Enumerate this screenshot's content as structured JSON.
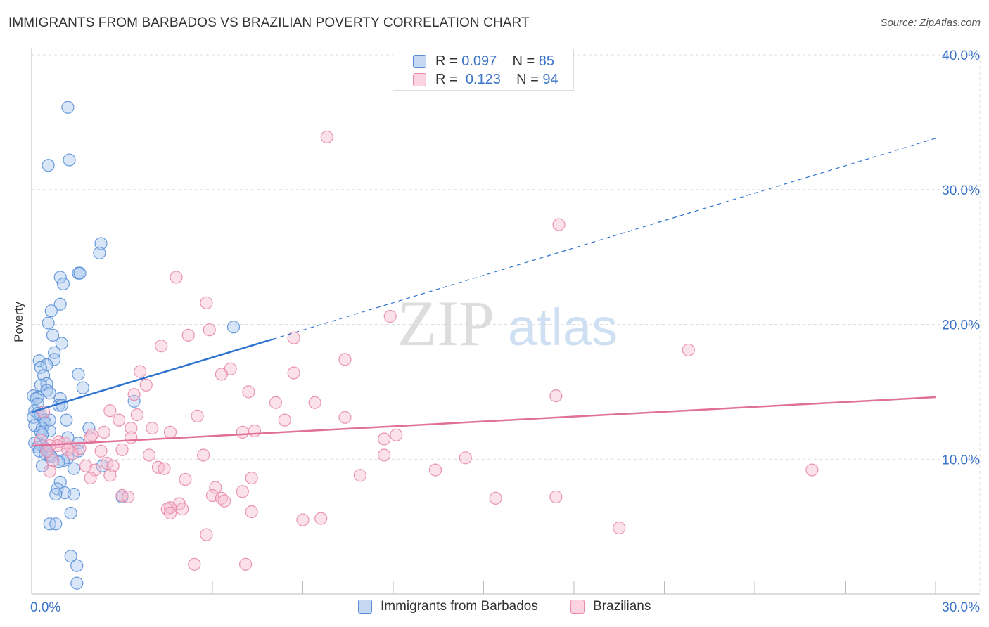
{
  "title": "IMMIGRANTS FROM BARBADOS VS BRAZILIAN POVERTY CORRELATION CHART",
  "source": "Source: ZipAtlas.com",
  "watermark": {
    "zip": "ZIP",
    "atlas": "atlas"
  },
  "colors": {
    "blue_fill": "#a9c7ee",
    "blue_stroke": "#5a8fd8",
    "blue_line": "#2f73d0",
    "pink_fill": "#f7bcd0",
    "pink_stroke": "#e88aaa",
    "pink_line": "#e07099",
    "axis_label": "#3a73c8"
  },
  "legend_top": [
    {
      "r_label": "R =",
      "r_value": "0.097",
      "n_label": "N =",
      "n_value": "85",
      "series": "blue"
    },
    {
      "r_label": "R =",
      "r_value": "0.123",
      "n_label": "N =",
      "n_value": "94",
      "series": "pink"
    }
  ],
  "legend_bottom": [
    {
      "label": "Immigrants from Barbados",
      "series": "blue"
    },
    {
      "label": "Brazilians",
      "series": "pink"
    }
  ],
  "chart_data": {
    "type": "scatter",
    "title": "IMMIGRANTS FROM BARBADOS VS BRAZILIAN POVERTY CORRELATION CHART",
    "xlabel": "",
    "ylabel": "Poverty",
    "xlim": [
      0,
      30
    ],
    "ylim": [
      0,
      40
    ],
    "x_ticks": [
      {
        "value": 0,
        "label": "0.0%"
      },
      {
        "value": 30,
        "label": "30.0%"
      }
    ],
    "y_ticks": [
      {
        "value": 10,
        "label": "10.0%"
      },
      {
        "value": 20,
        "label": "20.0%"
      },
      {
        "value": 30,
        "label": "30.0%"
      },
      {
        "value": 40,
        "label": "40.0%"
      }
    ],
    "grid": true,
    "series": [
      {
        "name": "Immigrants from Barbados",
        "color": "blue",
        "r": 0.097,
        "n": 85,
        "trend": {
          "x0": 0,
          "y0": 13.5,
          "x1": 8,
          "y1": 18.9,
          "dashed_to_x": 30,
          "dashed_to_y": 33.8
        },
        "points": [
          [
            1.2,
            36.1
          ],
          [
            1.25,
            32.2
          ],
          [
            0.55,
            31.8
          ],
          [
            2.3,
            26.0
          ],
          [
            2.25,
            25.3
          ],
          [
            1.55,
            23.8
          ],
          [
            1.6,
            23.8
          ],
          [
            0.95,
            23.5
          ],
          [
            1.05,
            23.0
          ],
          [
            0.95,
            21.5
          ],
          [
            0.65,
            21.0
          ],
          [
            0.55,
            20.1
          ],
          [
            6.7,
            19.8
          ],
          [
            0.7,
            19.2
          ],
          [
            1.0,
            18.6
          ],
          [
            0.75,
            17.9
          ],
          [
            0.75,
            17.4
          ],
          [
            0.25,
            17.3
          ],
          [
            0.5,
            17.0
          ],
          [
            0.3,
            16.8
          ],
          [
            1.55,
            16.3
          ],
          [
            0.4,
            16.2
          ],
          [
            0.5,
            15.6
          ],
          [
            0.3,
            15.5
          ],
          [
            1.7,
            15.3
          ],
          [
            0.5,
            15.1
          ],
          [
            0.6,
            14.9
          ],
          [
            0.05,
            14.7
          ],
          [
            0.2,
            14.6
          ],
          [
            0.15,
            14.5
          ],
          [
            0.95,
            14.5
          ],
          [
            3.4,
            14.3
          ],
          [
            0.2,
            14.1
          ],
          [
            0.9,
            14.0
          ],
          [
            1.0,
            14.0
          ],
          [
            0.1,
            13.6
          ],
          [
            0.2,
            13.4
          ],
          [
            0.3,
            13.3
          ],
          [
            0.05,
            13.1
          ],
          [
            0.4,
            12.9
          ],
          [
            0.6,
            12.9
          ],
          [
            1.15,
            12.9
          ],
          [
            0.45,
            12.7
          ],
          [
            0.1,
            12.5
          ],
          [
            0.35,
            12.3
          ],
          [
            1.9,
            12.3
          ],
          [
            0.6,
            12.1
          ],
          [
            0.3,
            12.0
          ],
          [
            0.35,
            11.8
          ],
          [
            1.2,
            11.6
          ],
          [
            0.1,
            11.2
          ],
          [
            1.55,
            11.2
          ],
          [
            0.35,
            11.0
          ],
          [
            0.2,
            10.9
          ],
          [
            0.45,
            10.8
          ],
          [
            0.5,
            10.7
          ],
          [
            1.55,
            10.6
          ],
          [
            0.25,
            10.6
          ],
          [
            0.55,
            10.5
          ],
          [
            0.45,
            10.4
          ],
          [
            0.6,
            10.3
          ],
          [
            0.65,
            10.2
          ],
          [
            1.2,
            10.1
          ],
          [
            1.05,
            9.9
          ],
          [
            0.9,
            9.8
          ],
          [
            2.35,
            9.5
          ],
          [
            0.35,
            9.5
          ],
          [
            1.4,
            9.3
          ],
          [
            0.95,
            8.3
          ],
          [
            0.85,
            7.8
          ],
          [
            1.1,
            7.5
          ],
          [
            0.8,
            7.4
          ],
          [
            1.4,
            7.4
          ],
          [
            3.0,
            7.2
          ],
          [
            1.3,
            6.0
          ],
          [
            0.6,
            5.2
          ],
          [
            0.8,
            5.2
          ],
          [
            1.3,
            2.8
          ],
          [
            1.5,
            2.1
          ],
          [
            1.5,
            0.8
          ]
        ]
      },
      {
        "name": "Brazilians",
        "color": "pink",
        "r": 0.123,
        "n": 94,
        "trend": {
          "x0": 0,
          "y0": 11.0,
          "x1": 30,
          "y1": 14.6
        },
        "points": [
          [
            9.8,
            33.9
          ],
          [
            17.5,
            27.4
          ],
          [
            4.8,
            23.5
          ],
          [
            5.8,
            21.6
          ],
          [
            11.9,
            20.6
          ],
          [
            5.9,
            19.6
          ],
          [
            5.2,
            19.2
          ],
          [
            8.7,
            19.0
          ],
          [
            4.3,
            18.4
          ],
          [
            21.8,
            18.1
          ],
          [
            10.4,
            17.4
          ],
          [
            6.6,
            16.7
          ],
          [
            3.6,
            16.5
          ],
          [
            6.3,
            16.3
          ],
          [
            8.7,
            16.4
          ],
          [
            3.8,
            15.5
          ],
          [
            7.2,
            15.0
          ],
          [
            3.4,
            14.8
          ],
          [
            17.4,
            14.7
          ],
          [
            8.1,
            14.2
          ],
          [
            9.4,
            14.2
          ],
          [
            2.6,
            13.6
          ],
          [
            0.4,
            13.5
          ],
          [
            3.5,
            13.3
          ],
          [
            5.5,
            13.2
          ],
          [
            8.4,
            12.9
          ],
          [
            10.4,
            13.1
          ],
          [
            2.9,
            12.9
          ],
          [
            3.3,
            12.3
          ],
          [
            4.0,
            12.3
          ],
          [
            7.4,
            12.1
          ],
          [
            4.6,
            12.0
          ],
          [
            7.0,
            12.0
          ],
          [
            2.4,
            12.0
          ],
          [
            2.0,
            11.8
          ],
          [
            3.3,
            11.6
          ],
          [
            1.95,
            11.6
          ],
          [
            12.1,
            11.8
          ],
          [
            11.7,
            11.5
          ],
          [
            0.3,
            11.4
          ],
          [
            0.9,
            11.3
          ],
          [
            1.1,
            11.2
          ],
          [
            0.85,
            11.0
          ],
          [
            0.6,
            11.0
          ],
          [
            1.3,
            10.9
          ],
          [
            1.6,
            10.8
          ],
          [
            1.2,
            10.7
          ],
          [
            0.5,
            10.6
          ],
          [
            2.3,
            10.6
          ],
          [
            3.0,
            10.7
          ],
          [
            1.35,
            10.4
          ],
          [
            3.9,
            10.3
          ],
          [
            5.7,
            10.3
          ],
          [
            11.7,
            10.3
          ],
          [
            14.4,
            10.1
          ],
          [
            0.7,
            9.9
          ],
          [
            2.5,
            9.7
          ],
          [
            2.7,
            9.5
          ],
          [
            1.8,
            9.5
          ],
          [
            4.2,
            9.4
          ],
          [
            4.4,
            9.3
          ],
          [
            2.1,
            9.2
          ],
          [
            13.4,
            9.2
          ],
          [
            25.9,
            9.2
          ],
          [
            0.6,
            9.1
          ],
          [
            2.6,
            8.8
          ],
          [
            10.9,
            8.8
          ],
          [
            1.95,
            8.6
          ],
          [
            7.3,
            8.6
          ],
          [
            5.1,
            8.5
          ],
          [
            6.1,
            7.9
          ],
          [
            7.0,
            7.6
          ],
          [
            3.0,
            7.3
          ],
          [
            3.2,
            7.2
          ],
          [
            6.0,
            7.3
          ],
          [
            6.3,
            7.1
          ],
          [
            15.4,
            7.1
          ],
          [
            17.4,
            7.2
          ],
          [
            6.4,
            6.9
          ],
          [
            4.9,
            6.7
          ],
          [
            4.6,
            6.4
          ],
          [
            4.5,
            6.3
          ],
          [
            5.0,
            6.3
          ],
          [
            4.6,
            6.0
          ],
          [
            7.3,
            6.1
          ],
          [
            9.0,
            5.5
          ],
          [
            9.6,
            5.6
          ],
          [
            19.5,
            4.9
          ],
          [
            5.8,
            4.4
          ],
          [
            5.4,
            2.2
          ],
          [
            7.1,
            2.2
          ]
        ]
      }
    ]
  }
}
